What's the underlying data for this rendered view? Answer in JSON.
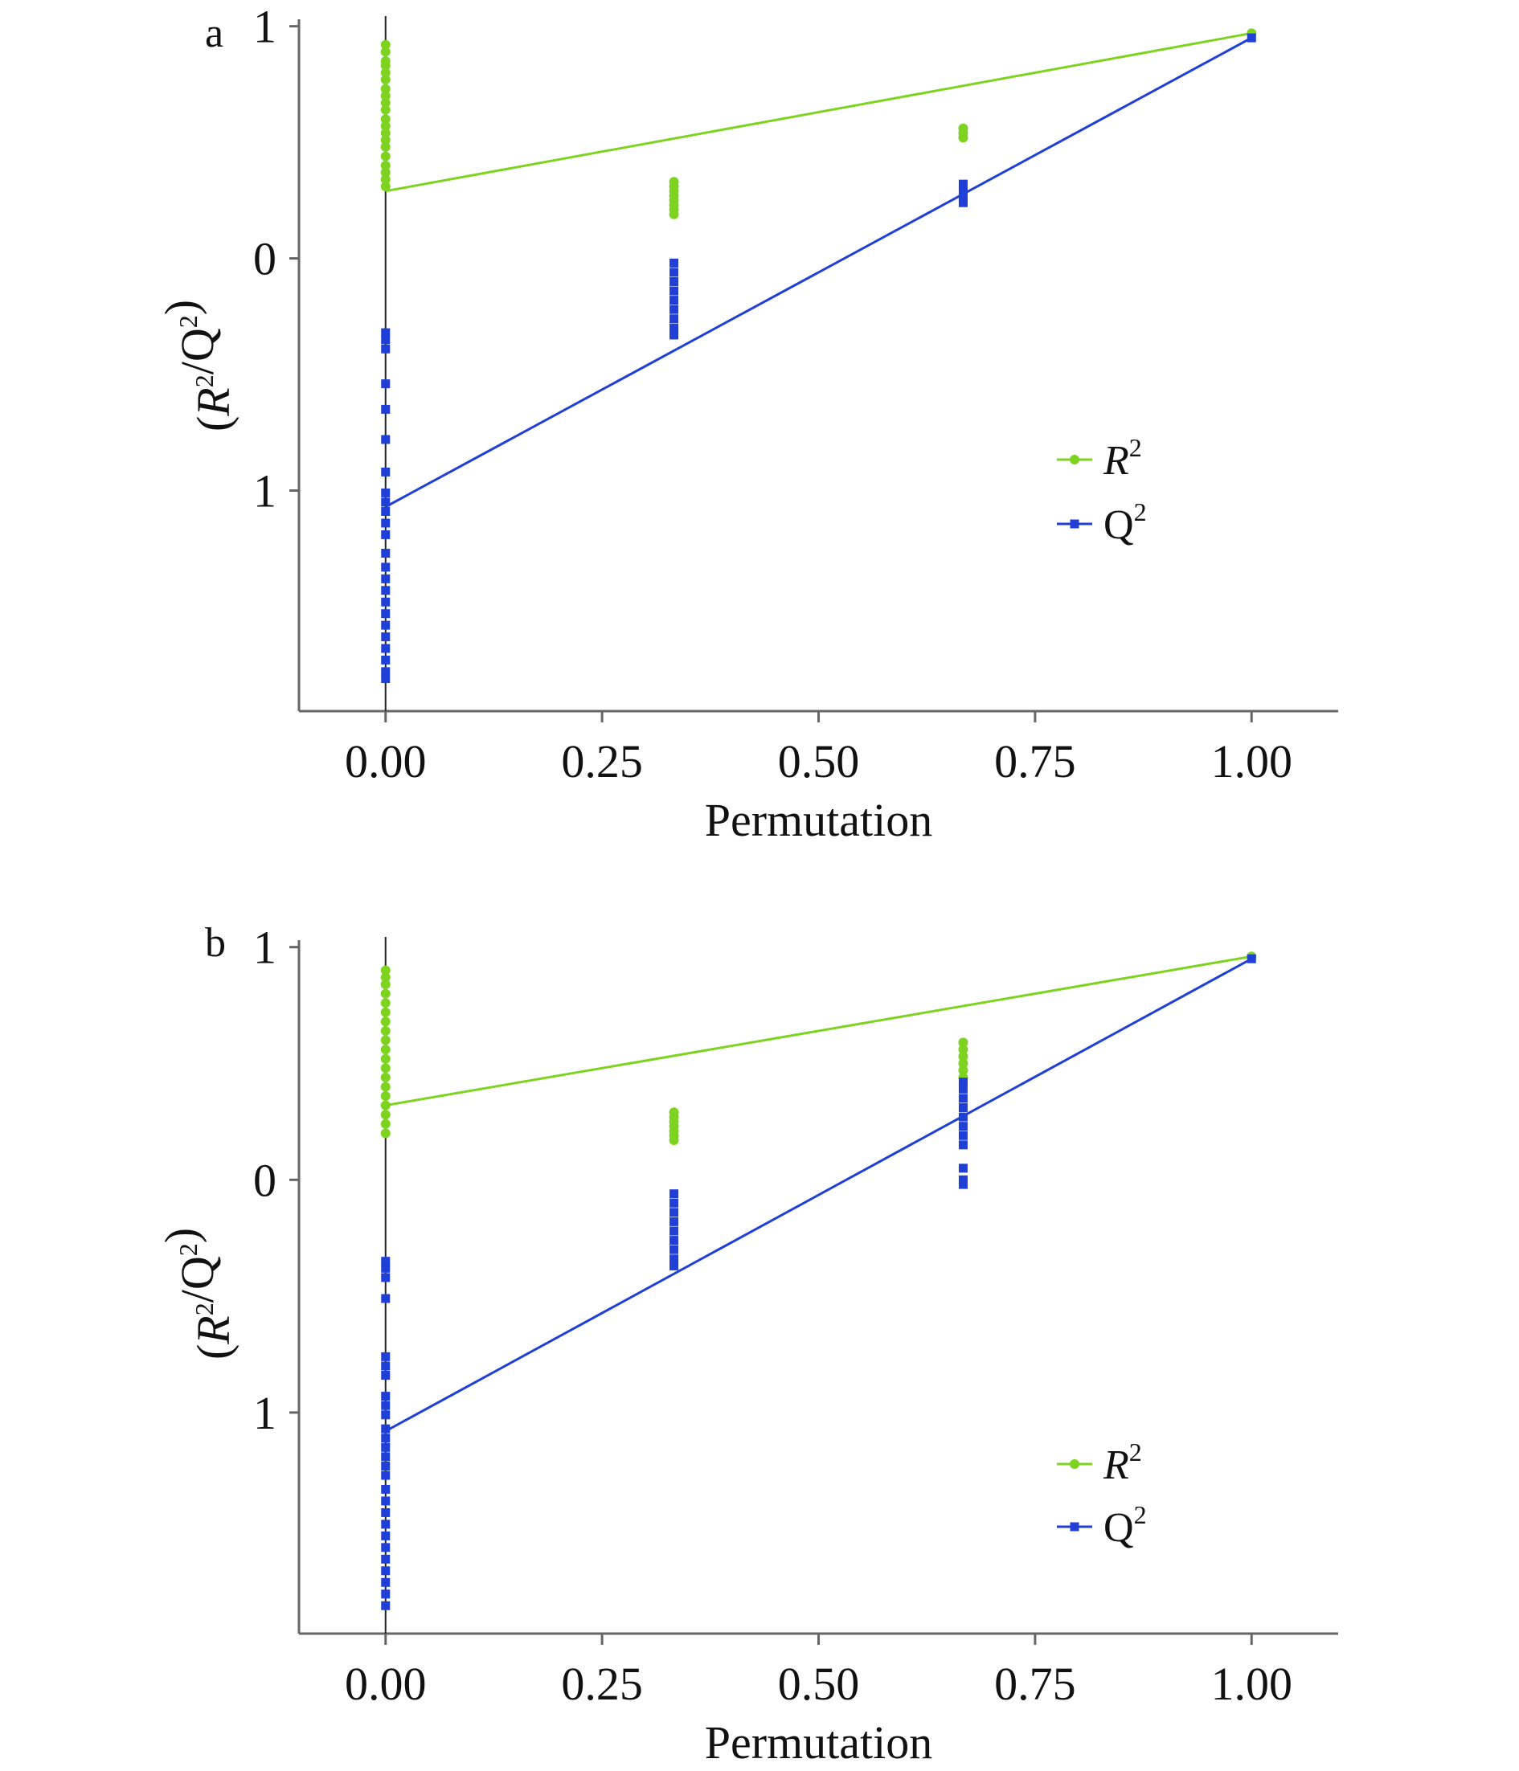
{
  "colors": {
    "r2": "#7ed321",
    "q2": "#1f3fd6",
    "axis": "#666666"
  },
  "chart_data": [
    {
      "type": "scatter",
      "panel_label": "a",
      "xlabel": "Permutation",
      "ylabel": "(R²/Q²)",
      "ylabel_parts": {
        "open": "(",
        "r": "R",
        "r_sup": "2",
        "slash": "/Q",
        "q_sup": "2",
        "close": ")"
      },
      "xlim": [
        -0.1,
        1.1
      ],
      "ylim": [
        -1.95,
        1.03
      ],
      "x_ticks": [
        0,
        0.25,
        0.5,
        0.75,
        1
      ],
      "x_tick_labels": [
        "0.00",
        "0.25",
        "0.50",
        "0.75",
        "1.00"
      ],
      "y_ticks": [
        1,
        0,
        -1
      ],
      "y_tick_labels": [
        "1",
        "0",
        "1"
      ],
      "legend": {
        "position": "right",
        "items": [
          {
            "name": "R",
            "sup": "2",
            "italic": true,
            "series": "r2"
          },
          {
            "name": "Q",
            "sup": "2",
            "italic": false,
            "series": "q2"
          }
        ]
      },
      "series": [
        {
          "name": "R²",
          "key": "r2",
          "marker": "circle",
          "points": [
            [
              0,
              0.92
            ],
            [
              0,
              0.89
            ],
            [
              0,
              0.85
            ],
            [
              0,
              0.83
            ],
            [
              0,
              0.8
            ],
            [
              0,
              0.77
            ],
            [
              0,
              0.73
            ],
            [
              0,
              0.7
            ],
            [
              0,
              0.67
            ],
            [
              0,
              0.64
            ],
            [
              0,
              0.6
            ],
            [
              0,
              0.57
            ],
            [
              0,
              0.54
            ],
            [
              0,
              0.51
            ],
            [
              0,
              0.48
            ],
            [
              0,
              0.44
            ],
            [
              0,
              0.4
            ],
            [
              0,
              0.37
            ],
            [
              0,
              0.34
            ],
            [
              0,
              0.31
            ],
            [
              0.333,
              0.33
            ],
            [
              0.333,
              0.31
            ],
            [
              0.333,
              0.29
            ],
            [
              0.333,
              0.27
            ],
            [
              0.333,
              0.25
            ],
            [
              0.333,
              0.23
            ],
            [
              0.333,
              0.21
            ],
            [
              0.333,
              0.19
            ],
            [
              0.667,
              0.56
            ],
            [
              0.667,
              0.54
            ],
            [
              0.667,
              0.52
            ],
            [
              1,
              0.97
            ]
          ],
          "regression": [
            [
              0,
              0.29
            ],
            [
              1,
              0.97
            ]
          ]
        },
        {
          "name": "Q²",
          "key": "q2",
          "marker": "square",
          "points": [
            [
              0,
              -0.32
            ],
            [
              0,
              -0.35
            ],
            [
              0,
              -0.39
            ],
            [
              0,
              -0.54
            ],
            [
              0,
              -0.65
            ],
            [
              0,
              -0.78
            ],
            [
              0,
              -0.92
            ],
            [
              0,
              -1.01
            ],
            [
              0,
              -1.05
            ],
            [
              0,
              -1.09
            ],
            [
              0,
              -1.14
            ],
            [
              0,
              -1.19
            ],
            [
              0,
              -1.27
            ],
            [
              0,
              -1.33
            ],
            [
              0,
              -1.38
            ],
            [
              0,
              -1.43
            ],
            [
              0,
              -1.48
            ],
            [
              0,
              -1.53
            ],
            [
              0,
              -1.58
            ],
            [
              0,
              -1.63
            ],
            [
              0,
              -1.68
            ],
            [
              0,
              -1.73
            ],
            [
              0,
              -1.78
            ],
            [
              0,
              -1.81
            ],
            [
              0.333,
              -0.02
            ],
            [
              0.333,
              -0.06
            ],
            [
              0.333,
              -0.1
            ],
            [
              0.333,
              -0.14
            ],
            [
              0.333,
              -0.18
            ],
            [
              0.333,
              -0.22
            ],
            [
              0.333,
              -0.26
            ],
            [
              0.333,
              -0.3
            ],
            [
              0.333,
              -0.33
            ],
            [
              0.667,
              0.32
            ],
            [
              0.667,
              0.29
            ],
            [
              0.667,
              0.26
            ],
            [
              0.667,
              0.24
            ],
            [
              1,
              0.95
            ]
          ],
          "regression": [
            [
              0,
              -1.07
            ],
            [
              1,
              0.95
            ]
          ]
        }
      ]
    },
    {
      "type": "scatter",
      "panel_label": "b",
      "xlabel": "Permutation",
      "ylabel": "(R²/Q²)",
      "ylabel_parts": {
        "open": "(",
        "r": "R",
        "r_sup": "2",
        "slash": "/Q",
        "q_sup": "2",
        "close": ")"
      },
      "xlim": [
        -0.1,
        1.1
      ],
      "ylim": [
        -1.95,
        1.03
      ],
      "x_ticks": [
        0,
        0.25,
        0.5,
        0.75,
        1
      ],
      "x_tick_labels": [
        "0.00",
        "0.25",
        "0.50",
        "0.75",
        "1.00"
      ],
      "y_ticks": [
        1,
        0,
        -1
      ],
      "y_tick_labels": [
        "1",
        "0",
        "1"
      ],
      "legend": {
        "position": "right",
        "items": [
          {
            "name": "R",
            "sup": "2",
            "italic": true,
            "series": "r2"
          },
          {
            "name": "Q",
            "sup": "2",
            "italic": false,
            "series": "q2"
          }
        ]
      },
      "series": [
        {
          "name": "R²",
          "key": "r2",
          "marker": "circle",
          "points": [
            [
              0,
              0.9
            ],
            [
              0,
              0.87
            ],
            [
              0,
              0.84
            ],
            [
              0,
              0.8
            ],
            [
              0,
              0.76
            ],
            [
              0,
              0.72
            ],
            [
              0,
              0.68
            ],
            [
              0,
              0.64
            ],
            [
              0,
              0.6
            ],
            [
              0,
              0.56
            ],
            [
              0,
              0.52
            ],
            [
              0,
              0.48
            ],
            [
              0,
              0.44
            ],
            [
              0,
              0.4
            ],
            [
              0,
              0.36
            ],
            [
              0,
              0.32
            ],
            [
              0,
              0.28
            ],
            [
              0,
              0.24
            ],
            [
              0,
              0.2
            ],
            [
              0.333,
              0.29
            ],
            [
              0.333,
              0.27
            ],
            [
              0.333,
              0.25
            ],
            [
              0.333,
              0.23
            ],
            [
              0.333,
              0.21
            ],
            [
              0.333,
              0.19
            ],
            [
              0.333,
              0.17
            ],
            [
              0.667,
              0.59
            ],
            [
              0.667,
              0.56
            ],
            [
              0.667,
              0.53
            ],
            [
              0.667,
              0.5
            ],
            [
              0.667,
              0.47
            ],
            [
              0.667,
              0.44
            ],
            [
              1,
              0.96
            ]
          ],
          "regression": [
            [
              0,
              0.32
            ],
            [
              1,
              0.96
            ]
          ]
        },
        {
          "name": "Q²",
          "key": "q2",
          "marker": "square",
          "points": [
            [
              0,
              -0.35
            ],
            [
              0,
              -0.38
            ],
            [
              0,
              -0.42
            ],
            [
              0,
              -0.51
            ],
            [
              0,
              -0.76
            ],
            [
              0,
              -0.8
            ],
            [
              0,
              -0.84
            ],
            [
              0,
              -0.93
            ],
            [
              0,
              -0.97
            ],
            [
              0,
              -1.01
            ],
            [
              0,
              -1.07
            ],
            [
              0,
              -1.11
            ],
            [
              0,
              -1.15
            ],
            [
              0,
              -1.19
            ],
            [
              0,
              -1.23
            ],
            [
              0,
              -1.27
            ],
            [
              0,
              -1.33
            ],
            [
              0,
              -1.38
            ],
            [
              0,
              -1.43
            ],
            [
              0,
              -1.48
            ],
            [
              0,
              -1.53
            ],
            [
              0,
              -1.58
            ],
            [
              0,
              -1.63
            ],
            [
              0,
              -1.68
            ],
            [
              0,
              -1.73
            ],
            [
              0,
              -1.78
            ],
            [
              0,
              -1.83
            ],
            [
              0.333,
              -0.06
            ],
            [
              0.333,
              -0.1
            ],
            [
              0.333,
              -0.14
            ],
            [
              0.333,
              -0.18
            ],
            [
              0.333,
              -0.22
            ],
            [
              0.333,
              -0.26
            ],
            [
              0.333,
              -0.3
            ],
            [
              0.333,
              -0.34
            ],
            [
              0.333,
              -0.37
            ],
            [
              0.667,
              0.42
            ],
            [
              0.667,
              0.39
            ],
            [
              0.667,
              0.35
            ],
            [
              0.667,
              0.31
            ],
            [
              0.667,
              0.27
            ],
            [
              0.667,
              0.23
            ],
            [
              0.667,
              0.19
            ],
            [
              0.667,
              0.15
            ],
            [
              0.667,
              0.05
            ],
            [
              0.667,
              0.0
            ],
            [
              0.667,
              -0.02
            ],
            [
              1,
              0.95
            ]
          ],
          "regression": [
            [
              0,
              -1.08
            ],
            [
              1,
              0.95
            ]
          ]
        }
      ]
    }
  ]
}
